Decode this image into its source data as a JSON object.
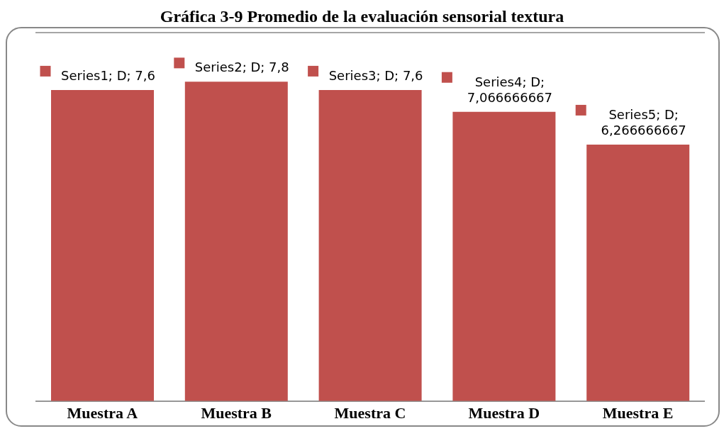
{
  "chart_data": {
    "type": "bar",
    "title": "Gráfica 3-9 Promedio de la evaluación sensorial textura",
    "categories": [
      "Muestra A",
      "Muestra B",
      "Muestra C",
      "Muestra D",
      "Muestra E"
    ],
    "values": [
      7.6,
      7.8,
      7.6,
      7.066666667,
      6.266666667
    ],
    "value_labels": [
      "Series1; D; 7,6",
      "Series2; D; 7,8",
      "Series3; D; 7,6",
      "Series4; D; 7,066666667",
      "Series5; D; 6,266666667"
    ],
    "color": "#c0504d",
    "ylim": [
      0,
      9
    ],
    "grid": "y",
    "tick_labels": "x",
    "legend": false
  }
}
